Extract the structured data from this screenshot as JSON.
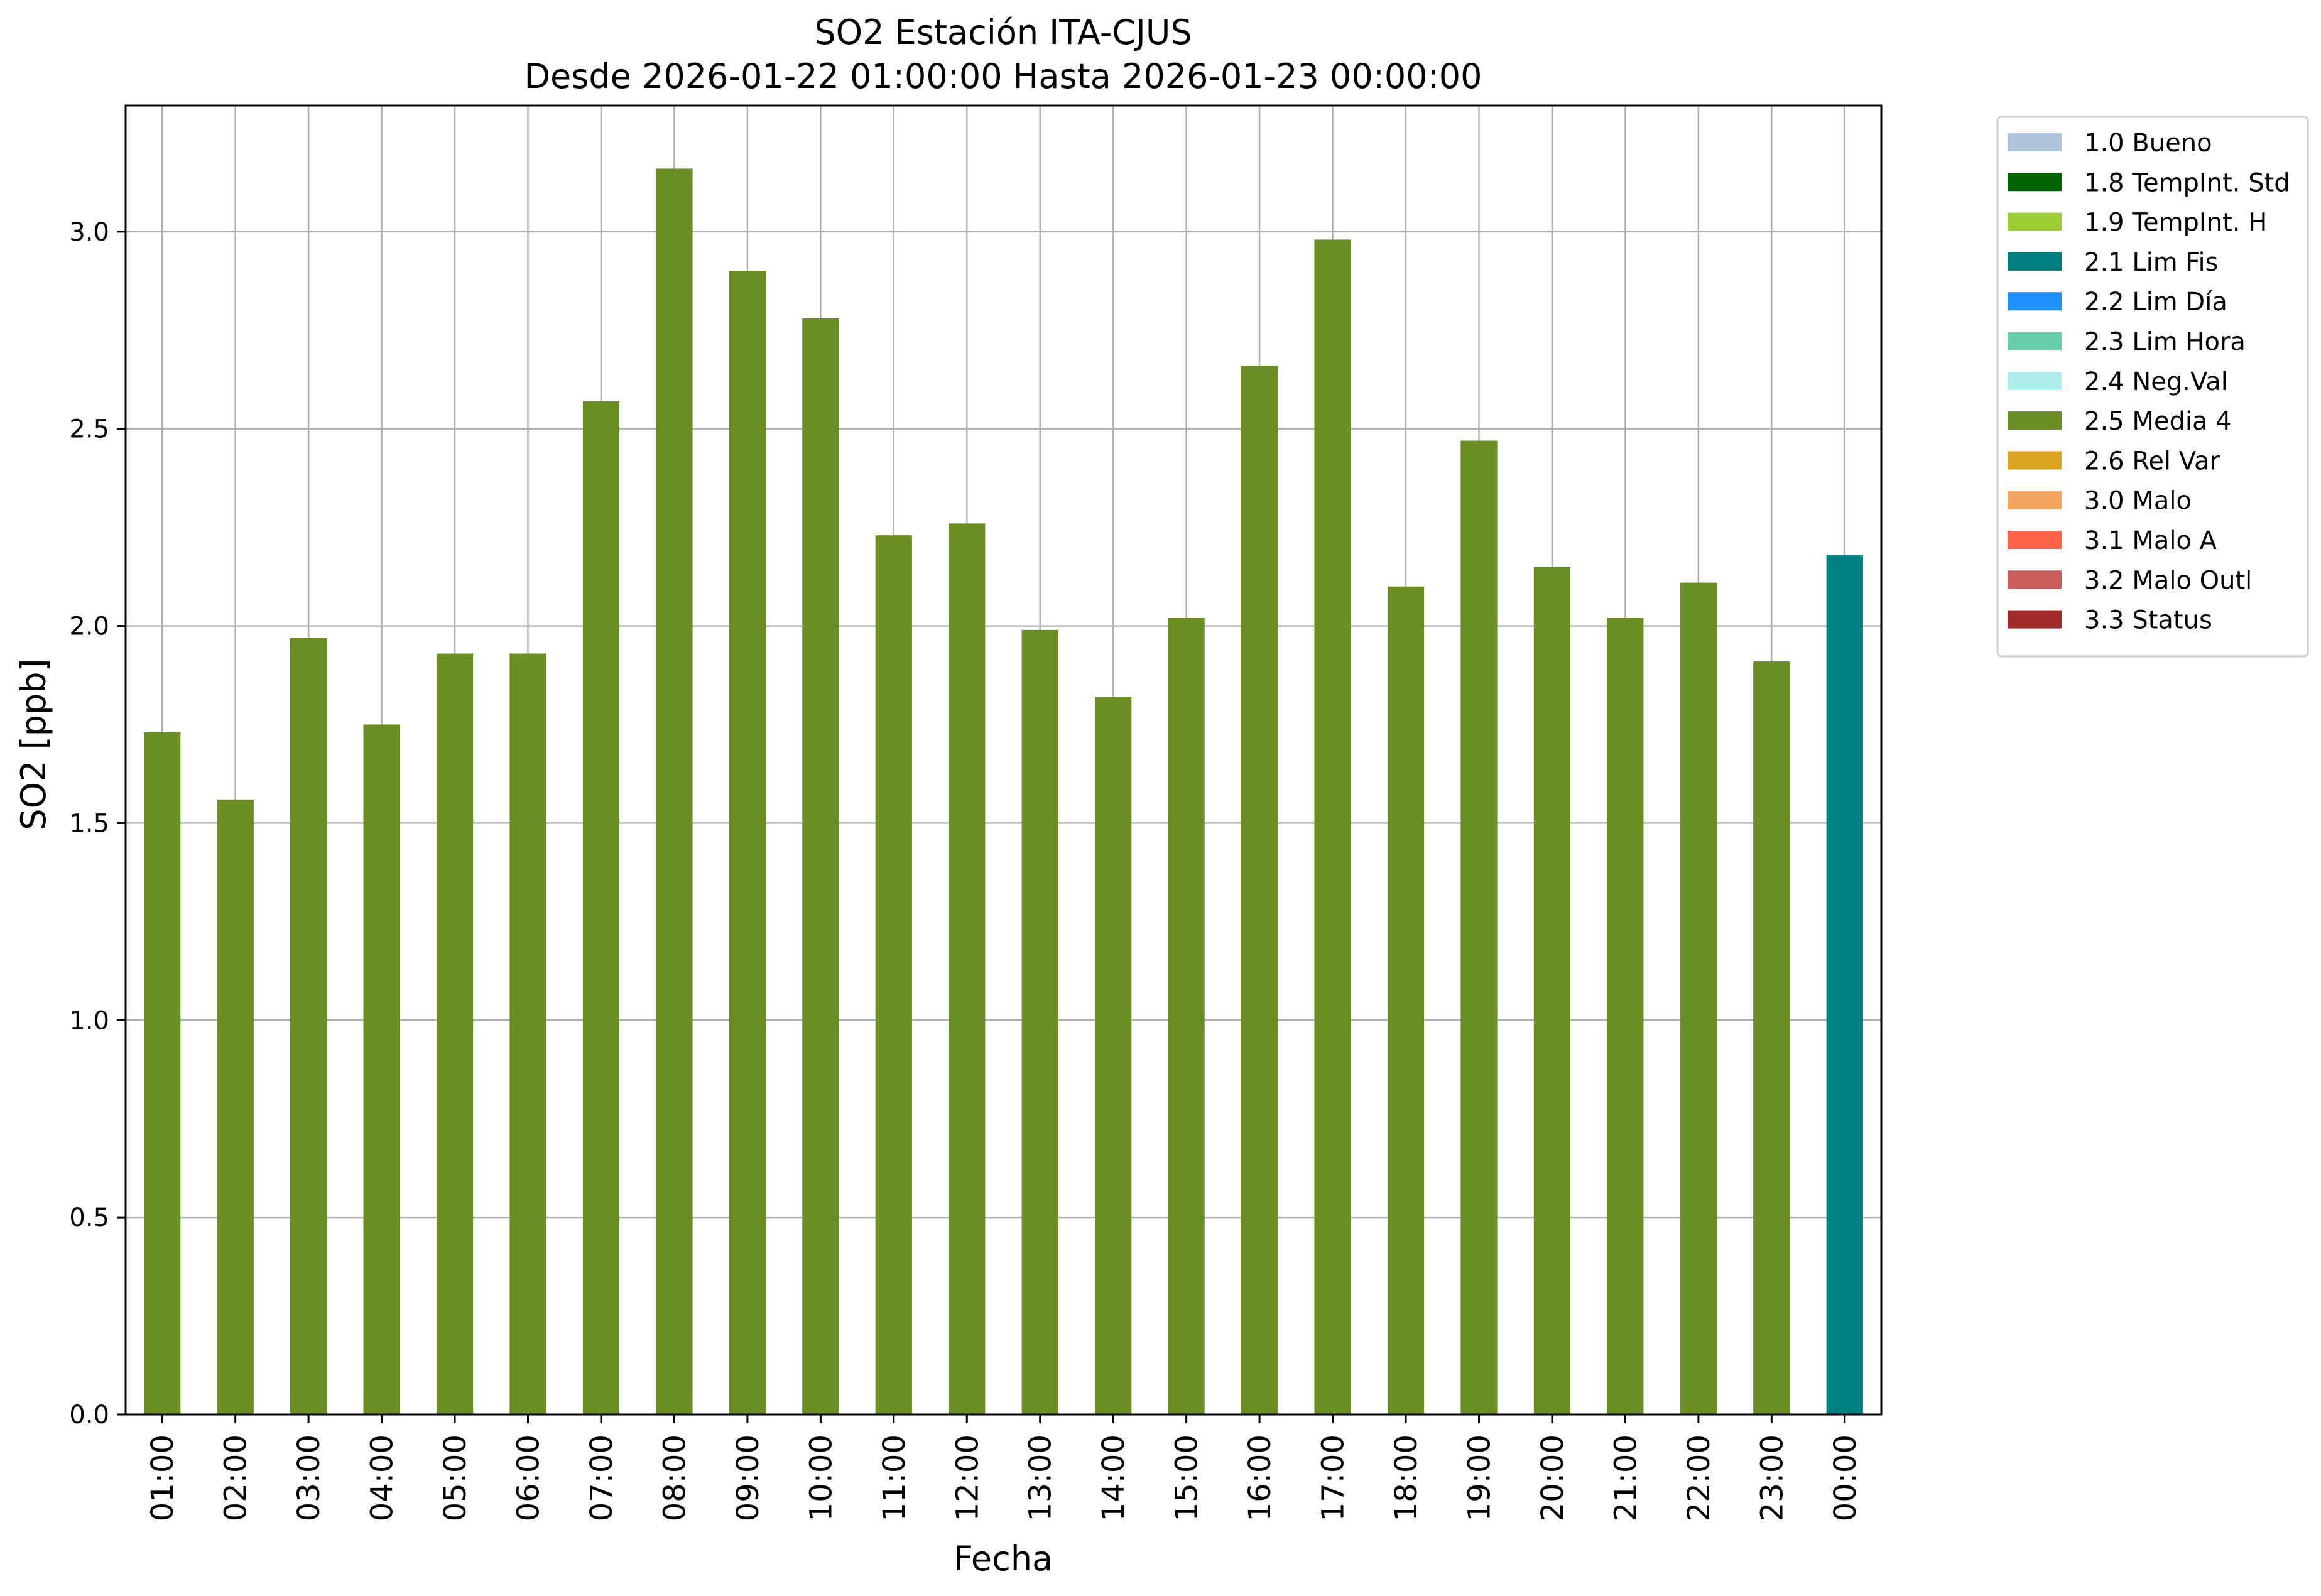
{
  "chart_data": {
    "type": "bar",
    "title": "SO2 Estación ITA-CJUS",
    "subtitle": "Desde 2026-01-22 01:00:00 Hasta 2026-01-23 00:00:00",
    "xlabel": "Fecha",
    "ylabel": "SO2 [ppb]",
    "ylim": [
      0,
      3.32
    ],
    "yticks": [
      "0.0",
      "0.5",
      "1.0",
      "1.5",
      "2.0",
      "2.5",
      "3.0"
    ],
    "grid": true,
    "legend_position": "outside-right",
    "categories": [
      "01:00",
      "02:00",
      "03:00",
      "04:00",
      "05:00",
      "06:00",
      "07:00",
      "08:00",
      "09:00",
      "10:00",
      "11:00",
      "12:00",
      "13:00",
      "14:00",
      "15:00",
      "16:00",
      "17:00",
      "18:00",
      "19:00",
      "20:00",
      "21:00",
      "22:00",
      "23:00",
      "00:00"
    ],
    "values": [
      1.73,
      1.56,
      1.97,
      1.75,
      1.93,
      1.93,
      2.57,
      3.16,
      2.9,
      2.78,
      2.23,
      2.26,
      1.99,
      1.82,
      2.02,
      2.66,
      2.98,
      2.1,
      2.47,
      2.15,
      2.02,
      2.11,
      1.91,
      2.18
    ],
    "flags": [
      "2.5",
      "2.5",
      "2.5",
      "2.5",
      "2.5",
      "2.5",
      "2.5",
      "2.5",
      "2.5",
      "2.5",
      "2.5",
      "2.5",
      "2.5",
      "2.5",
      "2.5",
      "2.5",
      "2.5",
      "2.5",
      "2.5",
      "2.5",
      "2.5",
      "2.5",
      "2.5",
      "2.1"
    ],
    "legend": [
      {
        "code": "1.0",
        "label": "1.0 Bueno",
        "color": "#b0c4de"
      },
      {
        "code": "1.8",
        "label": "1.8 TempInt. Std",
        "color": "#006400"
      },
      {
        "code": "1.9",
        "label": "1.9 TempInt. H",
        "color": "#9acd32"
      },
      {
        "code": "2.1",
        "label": "2.1 Lim Fis",
        "color": "#008080"
      },
      {
        "code": "2.2",
        "label": "2.2 Lim Día",
        "color": "#1e90ff"
      },
      {
        "code": "2.3",
        "label": "2.3 Lim Hora",
        "color": "#66cdaa"
      },
      {
        "code": "2.4",
        "label": "2.4 Neg.Val",
        "color": "#afeeee"
      },
      {
        "code": "2.5",
        "label": "2.5 Media 4",
        "color": "#6b8e23"
      },
      {
        "code": "2.6",
        "label": "2.6 Rel Var",
        "color": "#daa520"
      },
      {
        "code": "3.0",
        "label": "3.0 Malo",
        "color": "#f4a460"
      },
      {
        "code": "3.1",
        "label": "3.1 Malo A",
        "color": "#ff6347"
      },
      {
        "code": "3.2",
        "label": "3.2 Malo Outl",
        "color": "#cd5c5c"
      },
      {
        "code": "3.3",
        "label": "3.3 Status",
        "color": "#a52a2a"
      }
    ]
  }
}
